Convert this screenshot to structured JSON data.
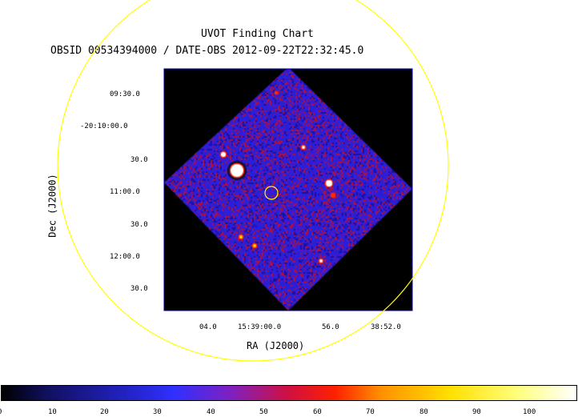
{
  "header": {
    "title": "UVOT Finding Chart",
    "subtitle": "OBSID 00534394000 / DATE-OBS 2012-09-22T22:32:45.0"
  },
  "chart_data": {
    "type": "heatmap",
    "title": "UVOT Finding Chart",
    "subtitle": "OBSID 00534394000 / DATE-OBS 2012-09-22T22:32:45.0",
    "xlabel": "RA (J2000)",
    "ylabel": "Dec (J2000)",
    "x_ticks": [
      "04.0",
      "15:39:00.0",
      "56.0",
      "38:52.0"
    ],
    "y_ticks": [
      "09:30.0",
      "-20:10:00.0",
      "30.0",
      "11:00.0",
      "30.0",
      "12:00.0",
      "30.0"
    ],
    "colorbar": {
      "ticks": [
        "0",
        "10",
        "20",
        "30",
        "40",
        "50",
        "60",
        "70",
        "80",
        "90",
        "100"
      ],
      "min": 0,
      "max": 100
    },
    "colors": {
      "background": "#000000",
      "field": "#2a1fd8",
      "noise": "#c0103a",
      "circle": "#ffff00",
      "frame": "#0000aa"
    },
    "sources_count": 9
  }
}
